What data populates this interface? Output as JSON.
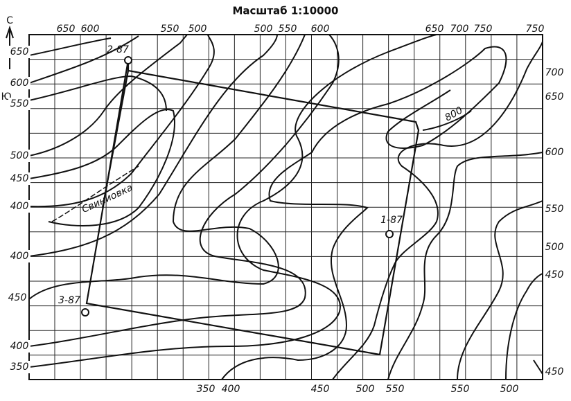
{
  "title": "Масштаб 1:10000",
  "compass": {
    "north": "С",
    "south": "Ю"
  },
  "contour_labels": {
    "top": [
      650,
      600,
      550,
      500,
      500,
      550,
      600,
      650,
      700,
      750,
      750
    ],
    "bottom": [
      350,
      400,
      450,
      500,
      550,
      550,
      500,
      450
    ],
    "left": [
      650,
      600,
      550,
      500,
      450,
      400,
      400,
      450,
      400,
      350
    ],
    "right": [
      700,
      650,
      600,
      550,
      500,
      450
    ]
  },
  "wells": [
    {
      "label": "2-87"
    },
    {
      "label": "1-87"
    },
    {
      "label": "3-87"
    }
  ],
  "peak_label": "800",
  "river": "Свиниовка"
}
